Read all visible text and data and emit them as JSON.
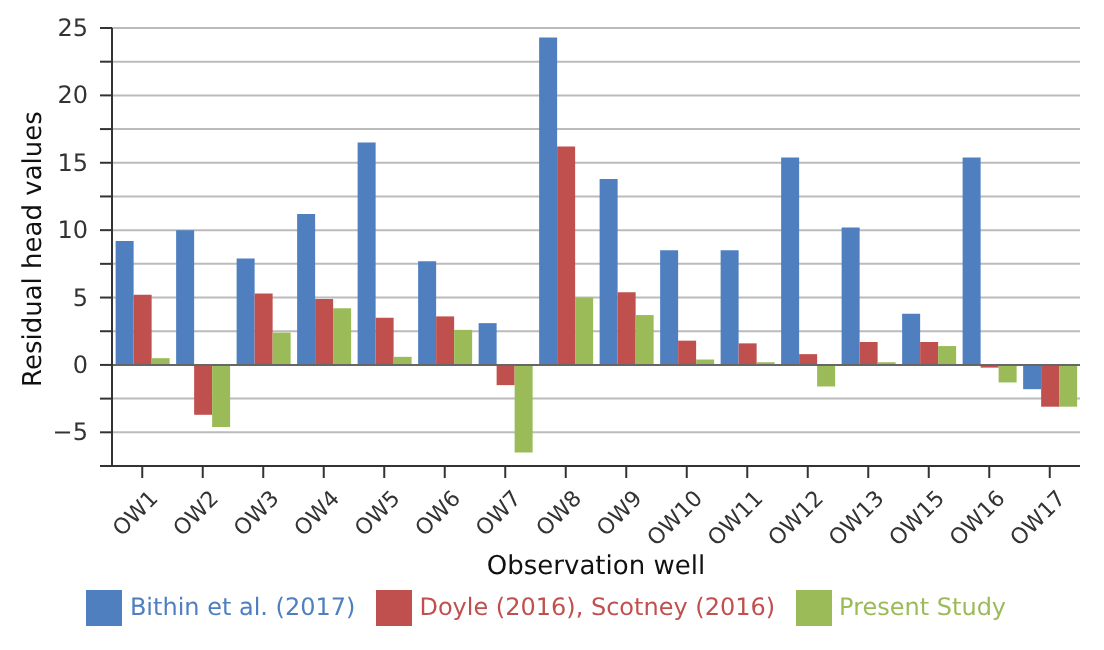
{
  "chart_data": {
    "type": "bar",
    "xlabel": "Observation well",
    "ylabel": "Residual head values",
    "categories": [
      "OW1",
      "OW2",
      "OW3",
      "OW4",
      "OW5",
      "OW6",
      "OW7",
      "OW8",
      "OW9",
      "OW10",
      "OW11",
      "OW12",
      "OW13",
      "OW15",
      "OW16",
      "OW17"
    ],
    "series": [
      {
        "name": "Bithin et al. (2017)",
        "color": "#4f7fbf",
        "values": [
          9.2,
          10.0,
          7.9,
          11.2,
          16.5,
          7.7,
          3.1,
          24.3,
          13.8,
          8.5,
          8.5,
          15.4,
          10.2,
          3.8,
          15.4,
          -1.8
        ]
      },
      {
        "name": "Doyle (2016), Scotney (2016)",
        "color": "#c0504d",
        "values": [
          5.2,
          -3.7,
          5.3,
          4.9,
          3.5,
          3.6,
          -1.5,
          16.2,
          5.4,
          1.8,
          1.6,
          0.8,
          1.7,
          1.7,
          -0.2,
          -3.1
        ]
      },
      {
        "name": "Present Study",
        "color": "#9bbb59",
        "values": [
          0.5,
          -4.6,
          2.4,
          4.2,
          0.6,
          2.6,
          -6.5,
          5.0,
          3.7,
          0.4,
          0.2,
          -1.6,
          0.2,
          1.4,
          -1.3,
          -3.1
        ]
      }
    ],
    "ylim": [
      -7.5,
      25
    ],
    "yticks": [
      {
        "value": -7.5,
        "label": null
      },
      -5,
      {
        "value": -2.5,
        "label": null
      },
      0,
      {
        "value": 2.5,
        "label": null
      },
      5,
      {
        "value": 7.5,
        "label": null
      },
      10,
      {
        "value": 12.5,
        "label": null
      },
      15,
      {
        "value": 17.5,
        "label": null
      },
      20,
      {
        "value": 22.5,
        "label": null
      },
      25
    ],
    "grid": "y",
    "legend": "bottom"
  }
}
